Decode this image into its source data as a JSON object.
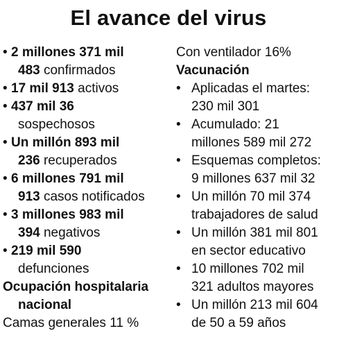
{
  "title": "El avance del virus",
  "left_items": [
    {
      "b1": "2 millones 371 mil",
      "b2": "483",
      "rest": " confirmados"
    },
    {
      "b1": "17 mil 913",
      "rest1": " activos"
    },
    {
      "b1": "437 mil 36",
      "l2": "sospechosos"
    },
    {
      "b1": "Un millón 893 mil",
      "b2": "236",
      "rest": " recuperados"
    },
    {
      "b1": "6 millones 791 mil",
      "b2": "913",
      "rest": " casos notificados"
    },
    {
      "b1": "3 millones 983 mil",
      "b2": "394",
      "rest": " negativos"
    },
    {
      "b1": "219 mil 590",
      "l2": "defunciones"
    }
  ],
  "hospital": {
    "heading_line1": "Ocupación hospitalaria",
    "heading_line2": "nacional",
    "camas": "Camas generales 11 %",
    "ventilador": "Con ventilador 16%"
  },
  "vacunacion": {
    "heading": "Vacunación",
    "items": [
      {
        "l1": "Aplicadas el martes:",
        "l2": "230 mil 301"
      },
      {
        "l1": "Acumulado: 21",
        "l2": "millones 589 mil 272"
      },
      {
        "l1": "Esquemas completos:",
        "l2": "9 millones 637 mil 32"
      },
      {
        "l1": "Un millón 70 mil 374",
        "l2": "trabajadores de salud"
      },
      {
        "l1": "Un millón 381 mil 801",
        "l2": "en sector educativo"
      },
      {
        "l1": "10 millones 702 mil",
        "l2": "321 adultos mayores"
      },
      {
        "l1": "Un millón 213 mil 604",
        "l2": "de 50 a 59 años"
      }
    ]
  },
  "bullet": "•"
}
